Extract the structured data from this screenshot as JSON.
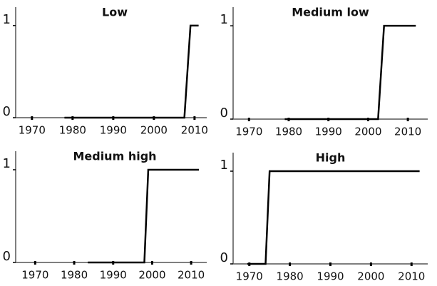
{
  "chart_data": [
    {
      "type": "line",
      "title": "Low",
      "x": [
        1978,
        2007.5,
        2009,
        2011
      ],
      "values": [
        0,
        0,
        1,
        1
      ],
      "color": "#000000",
      "xlim": [
        1966,
        2013
      ],
      "ylim": [
        0,
        1.2
      ],
      "xticks": [
        1970,
        1980,
        1990,
        2000,
        2010
      ],
      "yticks": [
        0,
        1
      ]
    },
    {
      "type": "line",
      "title": "Medium low",
      "x": [
        1979,
        2002.5,
        2004,
        2012
      ],
      "values": [
        0,
        0,
        1,
        1
      ],
      "color": "#000000",
      "xlim": [
        1966,
        2015
      ],
      "ylim": [
        0,
        1.2
      ],
      "xticks": [
        1970,
        1980,
        1990,
        2000,
        2010
      ],
      "yticks": [
        0,
        1
      ]
    },
    {
      "type": "line",
      "title": "Medium high",
      "x": [
        1983.5,
        1998,
        1999,
        2012
      ],
      "values": [
        0,
        0,
        1,
        1
      ],
      "color": "#000000",
      "xlim": [
        1965,
        2014
      ],
      "ylim": [
        0,
        1.2
      ],
      "xticks": [
        1970,
        1980,
        1990,
        2000,
        2010
      ],
      "yticks": [
        0,
        1
      ]
    },
    {
      "type": "line",
      "title": "High",
      "x": [
        1969.5,
        1974,
        1975,
        2012
      ],
      "values": [
        0,
        0,
        1,
        1
      ],
      "color": "#000000",
      "xlim": [
        1966,
        2014
      ],
      "ylim": [
        0,
        1.2
      ],
      "xticks": [
        1970,
        1980,
        1990,
        2000,
        2010
      ],
      "yticks": [
        0,
        1
      ]
    }
  ]
}
